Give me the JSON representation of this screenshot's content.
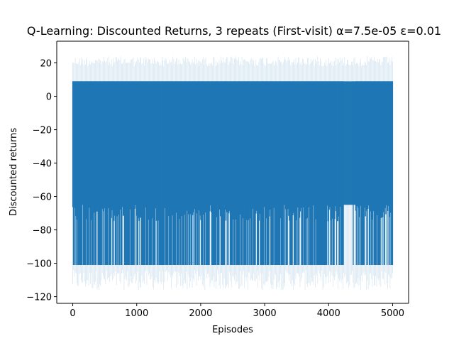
{
  "chart_data": {
    "type": "line",
    "title": "Q-Learning: Discounted Returns, 3 repeats (First-visit) α=7.5e-05 ε=0.01",
    "xlabel": "Episodes",
    "ylabel": "Discounted returns",
    "xlim": [
      -250,
      5250
    ],
    "ylim": [
      -124,
      33
    ],
    "xticks": [
      0,
      1000,
      2000,
      3000,
      4000,
      5000
    ],
    "xtick_labels": [
      "0",
      "1000",
      "2000",
      "3000",
      "4000",
      "5000"
    ],
    "yticks": [
      20,
      0,
      -20,
      -40,
      -60,
      -80,
      -100,
      -120
    ],
    "ytick_labels": [
      "20",
      "0",
      "−20",
      "−40",
      "−60",
      "−80",
      "−100",
      "−120"
    ],
    "grid": false,
    "legend": "none",
    "colors": {
      "series": "#1f77b4",
      "band": "#1f77b4"
    },
    "series": [
      {
        "name": "",
        "kind": "mean",
        "x_range": [
          0,
          5000
        ],
        "typical_max": 9,
        "typical_min": -65,
        "frequent_min": -101
      },
      {
        "name": "",
        "kind": "spread band",
        "x_range": [
          0,
          5000
        ],
        "upper": 24,
        "lower": -116
      }
    ],
    "notes_visible": {
      "sparse_region_x": [
        4240,
        4420
      ]
    }
  }
}
